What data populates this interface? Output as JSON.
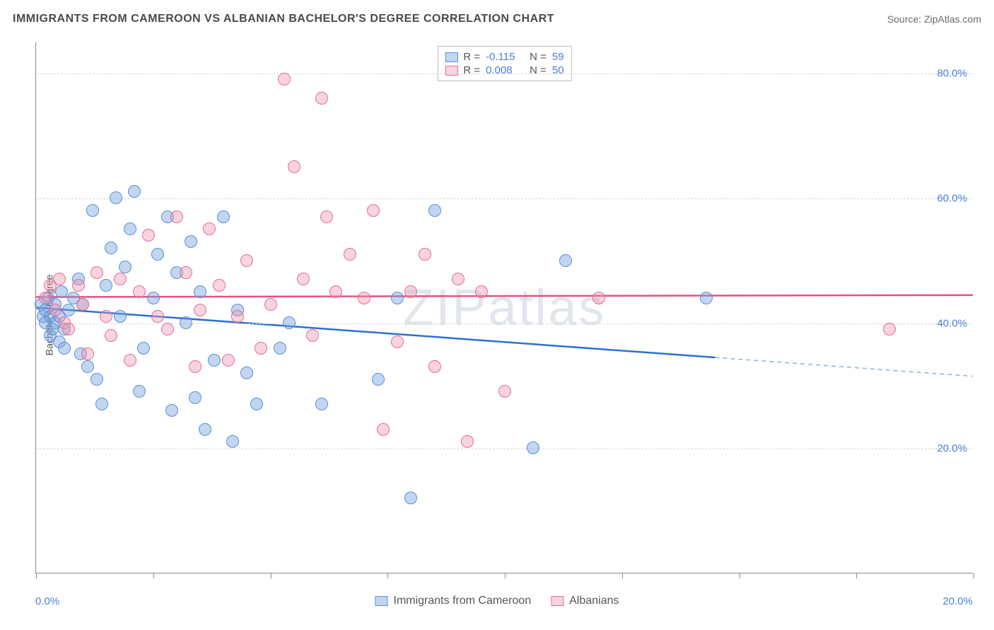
{
  "title": "IMMIGRANTS FROM CAMEROON VS ALBANIAN BACHELOR'S DEGREE CORRELATION CHART",
  "source": "Source: ZipAtlas.com",
  "watermark": "ZIPatlas",
  "chart": {
    "type": "scatter",
    "ylabel": "Bachelor's Degree",
    "xlim": [
      0,
      20
    ],
    "ylim": [
      0,
      85
    ],
    "xtick_positions": [
      0,
      2.5,
      5,
      7.5,
      10,
      12.5,
      15,
      17.5,
      20
    ],
    "xtick_labels_shown": {
      "0": "0.0%",
      "20": "20.0%"
    },
    "ytick_positions": [
      20,
      40,
      60,
      80
    ],
    "ytick_labels": [
      "20.0%",
      "40.0%",
      "60.0%",
      "80.0%"
    ],
    "grid_color": "#d8d8d8",
    "axis_color": "#888888",
    "background_color": "#ffffff",
    "label_color": "#4a7fd4",
    "title_color": "#4a4a4a",
    "title_fontsize": 16,
    "label_fontsize": 14,
    "tick_fontsize": 15,
    "marker_radius": 9,
    "series": [
      {
        "name": "Immigrants from Cameroon",
        "fill": "rgba(120,165,225,0.45)",
        "stroke": "#5a8fd6",
        "line_color": "#2f6fd0",
        "R": "-0.115",
        "N": "59",
        "trend": {
          "x1": 0,
          "y1": 42.5,
          "x2": 14.5,
          "y2": 34.5,
          "extrapolate_to": 20,
          "y_ext": 31.5
        },
        "points": [
          [
            0.1,
            43
          ],
          [
            0.15,
            41
          ],
          [
            0.2,
            42
          ],
          [
            0.2,
            40
          ],
          [
            0.25,
            44
          ],
          [
            0.3,
            38
          ],
          [
            0.3,
            41
          ],
          [
            0.35,
            39
          ],
          [
            0.4,
            40
          ],
          [
            0.4,
            43
          ],
          [
            0.5,
            37
          ],
          [
            0.5,
            41
          ],
          [
            0.55,
            45
          ],
          [
            0.6,
            36
          ],
          [
            0.6,
            39
          ],
          [
            0.7,
            42
          ],
          [
            0.8,
            44
          ],
          [
            0.9,
            47
          ],
          [
            0.95,
            35
          ],
          [
            1.0,
            43
          ],
          [
            1.1,
            33
          ],
          [
            1.2,
            58
          ],
          [
            1.3,
            31
          ],
          [
            1.4,
            27
          ],
          [
            1.5,
            46
          ],
          [
            1.6,
            52
          ],
          [
            1.7,
            60
          ],
          [
            1.8,
            41
          ],
          [
            1.9,
            49
          ],
          [
            2.0,
            55
          ],
          [
            2.1,
            61
          ],
          [
            2.2,
            29
          ],
          [
            2.3,
            36
          ],
          [
            2.5,
            44
          ],
          [
            2.6,
            51
          ],
          [
            2.8,
            57
          ],
          [
            2.9,
            26
          ],
          [
            3.0,
            48
          ],
          [
            3.2,
            40
          ],
          [
            3.3,
            53
          ],
          [
            3.4,
            28
          ],
          [
            3.5,
            45
          ],
          [
            3.6,
            23
          ],
          [
            3.8,
            34
          ],
          [
            4.0,
            57
          ],
          [
            4.2,
            21
          ],
          [
            4.3,
            42
          ],
          [
            4.5,
            32
          ],
          [
            4.7,
            27
          ],
          [
            5.2,
            36
          ],
          [
            5.4,
            40
          ],
          [
            6.1,
            27
          ],
          [
            7.3,
            31
          ],
          [
            7.7,
            44
          ],
          [
            8.0,
            12
          ],
          [
            8.5,
            58
          ],
          [
            10.6,
            20
          ],
          [
            11.3,
            50
          ],
          [
            14.3,
            44
          ]
        ]
      },
      {
        "name": "Albanians",
        "fill": "rgba(240,150,175,0.42)",
        "stroke": "#e06f92",
        "line_color": "#e94f7d",
        "R": "0.008",
        "N": "50",
        "trend": {
          "x1": 0,
          "y1": 44.2,
          "x2": 20,
          "y2": 44.5
        },
        "points": [
          [
            0.2,
            44
          ],
          [
            0.3,
            46
          ],
          [
            0.4,
            42
          ],
          [
            0.5,
            47
          ],
          [
            0.6,
            40
          ],
          [
            0.7,
            39
          ],
          [
            0.9,
            46
          ],
          [
            1.0,
            43
          ],
          [
            1.1,
            35
          ],
          [
            1.3,
            48
          ],
          [
            1.5,
            41
          ],
          [
            1.6,
            38
          ],
          [
            1.8,
            47
          ],
          [
            2.0,
            34
          ],
          [
            2.2,
            45
          ],
          [
            2.4,
            54
          ],
          [
            2.6,
            41
          ],
          [
            2.8,
            39
          ],
          [
            3.0,
            57
          ],
          [
            3.2,
            48
          ],
          [
            3.4,
            33
          ],
          [
            3.5,
            42
          ],
          [
            3.7,
            55
          ],
          [
            3.9,
            46
          ],
          [
            4.1,
            34
          ],
          [
            4.3,
            41
          ],
          [
            4.5,
            50
          ],
          [
            4.8,
            36
          ],
          [
            5.0,
            43
          ],
          [
            5.3,
            79
          ],
          [
            5.5,
            65
          ],
          [
            5.7,
            47
          ],
          [
            5.9,
            38
          ],
          [
            6.1,
            76
          ],
          [
            6.2,
            57
          ],
          [
            6.4,
            45
          ],
          [
            6.7,
            51
          ],
          [
            7.0,
            44
          ],
          [
            7.2,
            58
          ],
          [
            7.4,
            23
          ],
          [
            7.7,
            37
          ],
          [
            8.0,
            45
          ],
          [
            8.3,
            51
          ],
          [
            8.5,
            33
          ],
          [
            9.0,
            47
          ],
          [
            9.2,
            21
          ],
          [
            9.5,
            45
          ],
          [
            10.0,
            29
          ],
          [
            12.0,
            44
          ],
          [
            18.2,
            39
          ]
        ]
      }
    ],
    "legend_top_labels": {
      "R": "R =",
      "N": "N ="
    },
    "legend_bottom": [
      {
        "label": "Immigrants from Cameroon",
        "fill": "rgba(120,165,225,0.45)",
        "stroke": "#5a8fd6"
      },
      {
        "label": "Albanians",
        "fill": "rgba(240,150,175,0.42)",
        "stroke": "#e06f92"
      }
    ]
  }
}
